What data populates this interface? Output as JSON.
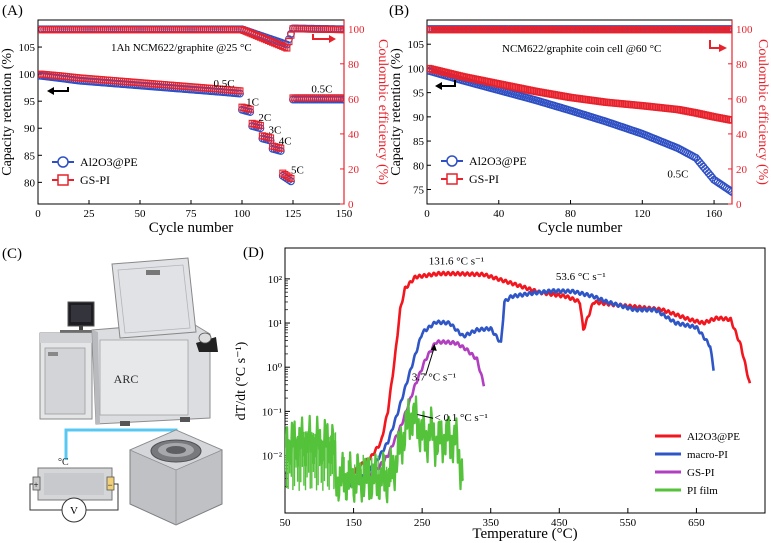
{
  "panels": {
    "a": {
      "letter": "(A)",
      "annotation": "1Ah NCM622/graphite @25 °C"
    },
    "b": {
      "letter": "(B)",
      "annotation": "NCM622/graphite coin cell @60 °C"
    },
    "c": {
      "letter": "(C)",
      "arc_label": "ARC",
      "thermocouple_label": "°C",
      "plus": "+",
      "minus": "−",
      "meter": "V"
    },
    "d": {
      "letter": "(D)"
    }
  },
  "colors": {
    "al2o3_pe": "#2e4fc4",
    "gs_pi": "#e8222c",
    "d_red": "#f2161f",
    "d_blue": "#2f56c6",
    "d_magenta": "#b13fc0",
    "d_green": "#54c23a"
  },
  "chart_data": [
    {
      "id": "A",
      "type": "scatter",
      "xlabel": "Cycle number",
      "ylabel": "Capacity retention (%)",
      "y2label": "Coulombic efficiency (%)",
      "xlim": [
        0,
        150
      ],
      "ylim": [
        76,
        110
      ],
      "y2lim": [
        0,
        105
      ],
      "xticks": [
        0,
        25,
        50,
        75,
        100,
        125,
        150
      ],
      "yticks": [
        80,
        85,
        90,
        95,
        100,
        105
      ],
      "y2ticks": [
        0,
        20,
        40,
        60,
        80,
        100
      ],
      "rate_labels": [
        "0.5C",
        "1C",
        "2C",
        "3C",
        "4C",
        "5C",
        "0.5C"
      ],
      "series": [
        {
          "name": "Al2O3@PE",
          "axis": "left",
          "x": [
            1,
            10,
            20,
            30,
            40,
            50,
            60,
            70,
            80,
            90,
            99,
            100,
            104,
            105,
            109,
            110,
            114,
            115,
            119,
            120,
            124,
            125,
            130,
            140,
            150
          ],
          "y": [
            99.7,
            99.3,
            98.8,
            98.5,
            98.2,
            97.9,
            97.6,
            97.3,
            97.0,
            96.7,
            96.4,
            93.4,
            93.0,
            90.4,
            90.0,
            88.1,
            87.7,
            86.2,
            85.8,
            81.2,
            80.2,
            95.3,
            95.3,
            95.3,
            95.3
          ]
        },
        {
          "name": "GS-PI",
          "axis": "left",
          "x": [
            1,
            10,
            20,
            30,
            40,
            50,
            60,
            70,
            80,
            90,
            99,
            100,
            104,
            105,
            109,
            110,
            114,
            115,
            119,
            120,
            124,
            125,
            130,
            140,
            150
          ],
          "y": [
            100.0,
            99.7,
            99.3,
            99.0,
            98.7,
            98.4,
            98.1,
            97.8,
            97.5,
            97.2,
            96.9,
            93.9,
            93.5,
            90.9,
            90.5,
            88.6,
            88.2,
            86.7,
            86.3,
            81.7,
            80.7,
            95.6,
            95.6,
            95.6,
            95.6
          ]
        },
        {
          "name": "Al2O3@PE",
          "axis": "right",
          "role": "coulombic",
          "x": [
            1,
            25,
            50,
            75,
            100,
            122,
            125,
            150
          ],
          "y": [
            99.7,
            99.7,
            99.7,
            99.7,
            99.7,
            91.0,
            100.2,
            99.7
          ]
        },
        {
          "name": "GS-PI",
          "axis": "right",
          "role": "coulombic",
          "x": [
            1,
            25,
            50,
            75,
            100,
            122,
            125,
            150
          ],
          "y": [
            99.5,
            99.5,
            99.5,
            99.5,
            99.5,
            89.0,
            100.0,
            99.5
          ]
        }
      ],
      "legend": [
        "Al2O3@PE",
        "GS-PI"
      ],
      "legend_position": "bottom-left"
    },
    {
      "id": "B",
      "type": "scatter",
      "xlabel": "Cycle number",
      "ylabel": "Capacity retention (%)",
      "y2label": "Coulombic efficiency (%)",
      "xlim": [
        0,
        170
      ],
      "ylim": [
        72,
        110
      ],
      "y2lim": [
        0,
        105
      ],
      "xticks": [
        0,
        40,
        80,
        120,
        160
      ],
      "yticks": [
        75,
        80,
        85,
        90,
        95,
        100,
        105
      ],
      "y2ticks": [
        0,
        20,
        40,
        60,
        80,
        100
      ],
      "rate_labels": [
        "0.5C"
      ],
      "series": [
        {
          "name": "Al2O3@PE",
          "axis": "left",
          "x": [
            1,
            20,
            40,
            60,
            80,
            100,
            120,
            140,
            150,
            160,
            170
          ],
          "y": [
            99.5,
            97.5,
            95.5,
            93.5,
            91.3,
            89.0,
            86.5,
            83.5,
            81.5,
            77.0,
            74.5
          ]
        },
        {
          "name": "GS-PI",
          "axis": "left",
          "x": [
            1,
            20,
            40,
            60,
            80,
            100,
            120,
            140,
            150,
            160,
            170
          ],
          "y": [
            100.0,
            98.3,
            96.8,
            95.3,
            94.0,
            93.0,
            92.3,
            91.5,
            90.8,
            90.0,
            89.3
          ]
        },
        {
          "name": "Al2O3@PE",
          "axis": "right",
          "role": "coulombic",
          "x": [
            1,
            170
          ],
          "y": [
            99.8,
            99.8
          ]
        },
        {
          "name": "GS-PI",
          "axis": "right",
          "role": "coulombic",
          "x": [
            1,
            170
          ],
          "y": [
            99.5,
            99.5
          ]
        }
      ],
      "legend": [
        "Al2O3@PE",
        "GS-PI"
      ],
      "legend_position": "bottom-left"
    },
    {
      "id": "D",
      "type": "line",
      "xlabel": "Temperature (°C)",
      "ylabel": "dT/dt (°C s⁻¹)",
      "xlim": [
        50,
        750
      ],
      "ylog": true,
      "ylim": [
        0.0005,
        500
      ],
      "xticks": [
        50,
        150,
        250,
        350,
        450,
        550,
        650
      ],
      "yticks": [
        0.01,
        0.1,
        1,
        10,
        100
      ],
      "ytick_labels": [
        "10⁻²",
        "10⁻¹",
        "10⁰",
        "10¹",
        "10²"
      ],
      "annotations": [
        {
          "text": "131.6 °C s⁻¹"
        },
        {
          "text": "53.6 °C s⁻¹"
        },
        {
          "text": "3.7 °C s⁻¹"
        },
        {
          "text": "< 0.1 °C s⁻¹"
        }
      ],
      "series": [
        {
          "name": "Al2O3@PE",
          "x": [
            142,
            160,
            175,
            190,
            200,
            210,
            218,
            225,
            240,
            275,
            300,
            340,
            380,
            420,
            460,
            480,
            485,
            500,
            540,
            600,
            640,
            660,
            680,
            700,
            715,
            728
          ],
          "y": [
            0.003,
            0.006,
            0.009,
            0.02,
            0.1,
            1.5,
            20,
            60,
            110,
            131.6,
            131,
            125,
            80,
            50,
            40,
            30,
            7,
            30,
            25,
            20,
            12,
            10,
            13,
            12,
            3,
            0.4
          ]
        },
        {
          "name": "macro-PI",
          "x": [
            140,
            160,
            180,
            200,
            215,
            230,
            250,
            270,
            290,
            300,
            310,
            330,
            350,
            365,
            370,
            380,
            410,
            440,
            470,
            500,
            520,
            560,
            590,
            620,
            650,
            660,
            670,
            675
          ],
          "y": [
            0.002,
            0.003,
            0.006,
            0.02,
            0.1,
            0.6,
            6,
            10.5,
            10,
            7,
            5,
            7,
            7.5,
            3.5,
            30,
            40,
            47,
            53.6,
            52,
            40,
            30,
            20,
            20,
            10,
            8,
            5,
            3,
            0.9
          ]
        },
        {
          "name": "GS-PI",
          "x": [
            150,
            180,
            200,
            220,
            240,
            255,
            270,
            285,
            300,
            315,
            330,
            340
          ],
          "y": [
            0.002,
            0.004,
            0.01,
            0.05,
            0.4,
            1.5,
            3.7,
            3.7,
            3.5,
            2.5,
            1.5,
            0.4
          ]
        },
        {
          "name": "PI film",
          "x": [
            50,
            100,
            120,
            125,
            130,
            180,
            190,
            200,
            210,
            220,
            230,
            235,
            245,
            255,
            262,
            270,
            285,
            300,
            310
          ],
          "y": [
            0.02,
            0.02,
            0.02,
            0.003,
            0.003,
            0.003,
            0.003,
            0.003,
            0.006,
            0.02,
            0.06,
            0.08,
            0.05,
            0.02,
            0.04,
            0.02,
            0.025,
            0.02,
            0.003
          ]
        }
      ],
      "legend": [
        "Al2O3@PE",
        "macro-PI",
        "GS-PI",
        "PI film"
      ],
      "legend_position": "bottom-right"
    }
  ]
}
